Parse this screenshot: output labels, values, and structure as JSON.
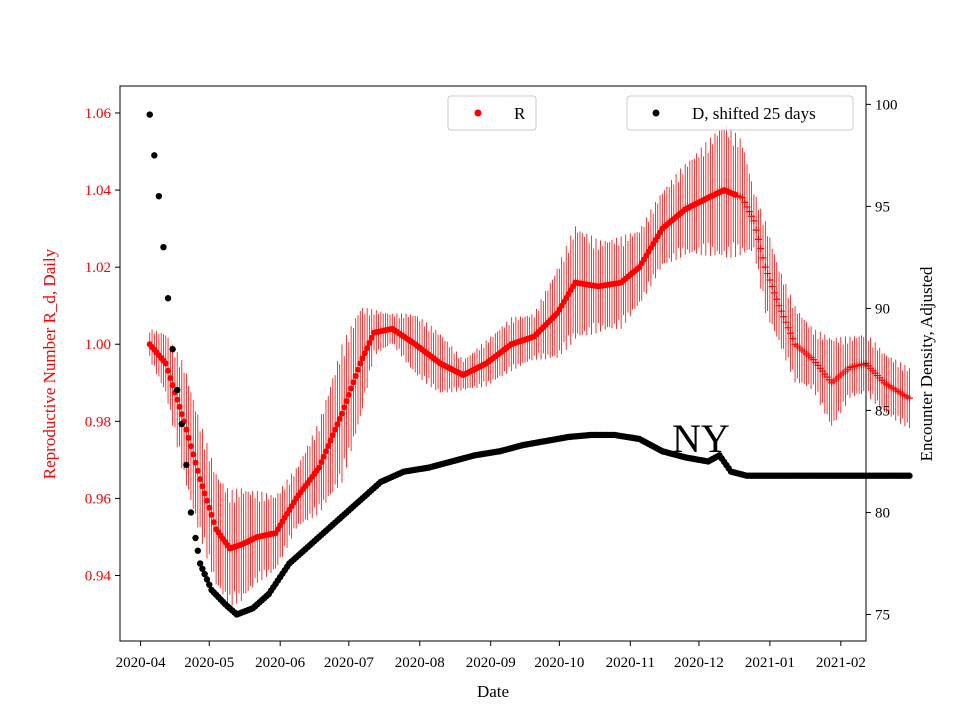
{
  "chart_data": {
    "type": "scatter",
    "xlabel": "Date",
    "ylabel_left": "Reproductive Number R_d, Daily",
    "ylabel_right": "Encounter Density, Adjusted",
    "annotation": "NY",
    "x_range": [
      "2020-03-23",
      "2021-02-12"
    ],
    "y_left_range": [
      0.923,
      1.067
    ],
    "y_right_range": [
      73.7,
      100.9
    ],
    "x_ticks": [
      "2020-04",
      "2020-05",
      "2020-06",
      "2020-07",
      "2020-08",
      "2020-09",
      "2020-10",
      "2020-11",
      "2020-12",
      "2021-01",
      "2021-02"
    ],
    "y_left_ticks": [
      "0.94",
      "0.96",
      "0.98",
      "1.00",
      "1.02",
      "1.04",
      "1.06"
    ],
    "y_right_ticks": [
      "75",
      "80",
      "85",
      "90",
      "95",
      "100"
    ],
    "colors": {
      "r_series": "#ff0000",
      "d_series": "#000000",
      "left_axis": "#ff0000"
    },
    "legend": [
      {
        "label": "R",
        "color": "#ff0000",
        "marker": "dot"
      },
      {
        "label": "D, shifted 25 days",
        "color": "#000000",
        "marker": "dot"
      }
    ],
    "series": [
      {
        "name": "R",
        "axis": "left",
        "knots": [
          [
            "2020-04-05",
            1.0,
            0.004
          ],
          [
            "2020-04-12",
            0.995,
            0.008
          ],
          [
            "2020-04-20",
            0.98,
            0.015
          ],
          [
            "2020-04-27",
            0.965,
            0.015
          ],
          [
            "2020-05-04",
            0.952,
            0.015
          ],
          [
            "2020-05-10",
            0.947,
            0.015
          ],
          [
            "2020-05-15",
            0.948,
            0.015
          ],
          [
            "2020-05-22",
            0.95,
            0.012
          ],
          [
            "2020-05-30",
            0.951,
            0.01
          ],
          [
            "2020-06-08",
            0.96,
            0.008
          ],
          [
            "2020-06-18",
            0.968,
            0.012
          ],
          [
            "2020-06-28",
            0.982,
            0.018
          ],
          [
            "2020-07-06",
            0.995,
            0.015
          ],
          [
            "2020-07-12",
            1.003,
            0.006
          ],
          [
            "2020-07-20",
            1.004,
            0.004
          ],
          [
            "2020-07-30",
            1.0,
            0.008
          ],
          [
            "2020-08-10",
            0.995,
            0.008
          ],
          [
            "2020-08-20",
            0.992,
            0.004
          ],
          [
            "2020-08-30",
            0.995,
            0.006
          ],
          [
            "2020-09-10",
            1.0,
            0.007
          ],
          [
            "2020-09-20",
            1.002,
            0.006
          ],
          [
            "2020-09-30",
            1.008,
            0.012
          ],
          [
            "2020-10-08",
            1.016,
            0.015
          ],
          [
            "2020-10-18",
            1.015,
            0.012
          ],
          [
            "2020-10-28",
            1.016,
            0.012
          ],
          [
            "2020-11-05",
            1.02,
            0.01
          ],
          [
            "2020-11-15",
            1.03,
            0.01
          ],
          [
            "2020-11-25",
            1.035,
            0.012
          ],
          [
            "2020-12-05",
            1.038,
            0.015
          ],
          [
            "2020-12-12",
            1.04,
            0.018
          ],
          [
            "2020-12-20",
            1.038,
            0.015
          ],
          [
            "2020-12-25",
            1.032,
            0.008
          ],
          [
            "2020-12-30",
            1.02,
            0.012
          ],
          [
            "2021-01-05",
            1.01,
            0.01
          ],
          [
            "2021-01-12",
            1.0,
            0.01
          ],
          [
            "2021-01-20",
            0.996,
            0.008
          ],
          [
            "2021-01-28",
            0.99,
            0.012
          ],
          [
            "2021-02-05",
            0.994,
            0.008
          ],
          [
            "2021-02-12",
            0.995,
            0.008
          ],
          [
            "2021-02-20",
            0.99,
            0.008
          ],
          [
            "2021-02-28",
            0.987,
            0.008
          ],
          [
            "2021-03-03",
            0.986,
            0.008
          ]
        ]
      },
      {
        "name": "D, shifted 25 days",
        "axis": "right",
        "knots": [
          [
            "2020-04-05",
            99.5
          ],
          [
            "2020-04-07",
            97.5
          ],
          [
            "2020-04-09",
            95.5
          ],
          [
            "2020-04-11",
            93.0
          ],
          [
            "2020-04-13",
            90.5
          ],
          [
            "2020-04-15",
            88.0
          ],
          [
            "2020-04-17",
            86.0
          ],
          [
            "2020-04-20",
            83.5
          ],
          [
            "2020-04-23",
            80.0
          ],
          [
            "2020-04-27",
            77.5
          ],
          [
            "2020-05-02",
            76.2
          ],
          [
            "2020-05-08",
            75.5
          ],
          [
            "2020-05-13",
            75.0
          ],
          [
            "2020-05-20",
            75.3
          ],
          [
            "2020-05-27",
            76.0
          ],
          [
            "2020-06-05",
            77.5
          ],
          [
            "2020-06-15",
            78.5
          ],
          [
            "2020-06-25",
            79.5
          ],
          [
            "2020-07-05",
            80.5
          ],
          [
            "2020-07-15",
            81.5
          ],
          [
            "2020-07-25",
            82.0
          ],
          [
            "2020-08-05",
            82.2
          ],
          [
            "2020-08-15",
            82.5
          ],
          [
            "2020-08-25",
            82.8
          ],
          [
            "2020-09-05",
            83.0
          ],
          [
            "2020-09-15",
            83.3
          ],
          [
            "2020-09-25",
            83.5
          ],
          [
            "2020-10-05",
            83.7
          ],
          [
            "2020-10-15",
            83.8
          ],
          [
            "2020-10-25",
            83.8
          ],
          [
            "2020-11-05",
            83.6
          ],
          [
            "2020-11-15",
            83.0
          ],
          [
            "2020-11-25",
            82.7
          ],
          [
            "2020-12-05",
            82.5
          ],
          [
            "2020-12-10",
            82.8
          ],
          [
            "2020-12-15",
            82.0
          ],
          [
            "2020-12-22",
            81.8
          ],
          [
            "2021-01-05",
            81.8
          ],
          [
            "2021-02-05",
            81.8
          ],
          [
            "2021-03-03",
            81.8
          ]
        ]
      }
    ]
  }
}
